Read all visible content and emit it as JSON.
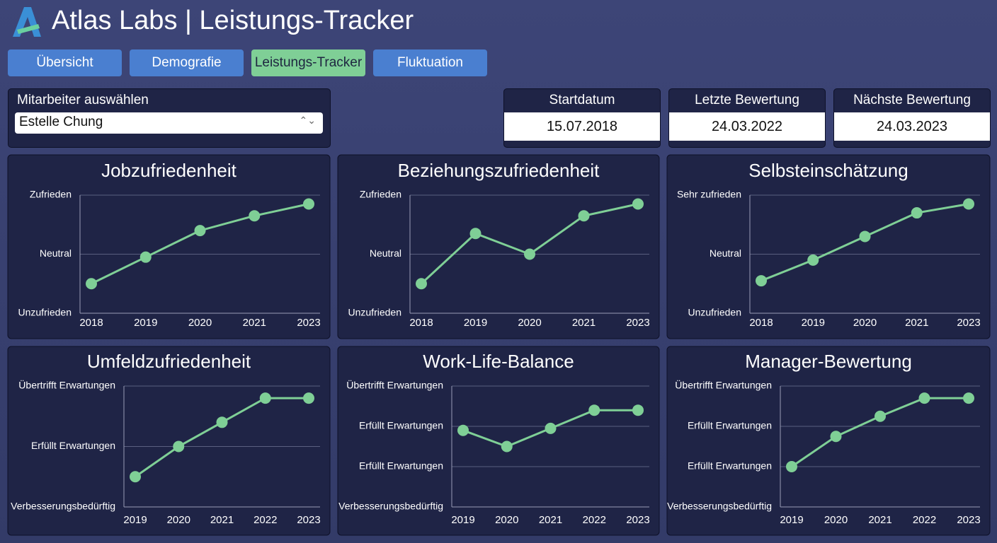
{
  "header": {
    "title": "Atlas Labs | Leistungs-Tracker"
  },
  "tabs": [
    "Übersicht",
    "Demografie",
    "Leistungs-Tracker",
    "Fluktuation"
  ],
  "active_tab": 2,
  "selector": {
    "label": "Mitarbeiter auswählen",
    "value": "Estelle Chung"
  },
  "dates": [
    {
      "label": "Startdatum",
      "value": "15.07.2018"
    },
    {
      "label": "Letzte Bewertung",
      "value": "24.03.2022"
    },
    {
      "label": "Nächste Bewertung",
      "value": "24.03.2023"
    }
  ],
  "chart_data": [
    {
      "type": "line",
      "title": "Jobzufriedenheit",
      "categories": [
        "2018",
        "2019",
        "2020",
        "2021",
        "2023"
      ],
      "series": [
        {
          "color": "#7fcf96",
          "values": [
            0.5,
            0.95,
            1.4,
            1.65,
            1.85
          ]
        }
      ],
      "ylim": [
        0,
        2
      ],
      "yticks": [
        {
          "value": 0,
          "label": "Unzufrieden"
        },
        {
          "value": 1,
          "label": "Neutral"
        },
        {
          "value": 2,
          "label": "Zufrieden"
        }
      ],
      "grid": true
    },
    {
      "type": "line",
      "title": "Beziehungszufriedenheit",
      "categories": [
        "2018",
        "2019",
        "2020",
        "2021",
        "2023"
      ],
      "series": [
        {
          "color": "#7fcf96",
          "values": [
            0.5,
            1.35,
            1.0,
            1.65,
            1.85
          ]
        }
      ],
      "ylim": [
        0,
        2
      ],
      "yticks": [
        {
          "value": 0,
          "label": "Unzufrieden"
        },
        {
          "value": 1,
          "label": "Neutral"
        },
        {
          "value": 2,
          "label": "Zufrieden"
        }
      ],
      "grid": true
    },
    {
      "type": "line",
      "title": "Selbsteinschätzung",
      "categories": [
        "2018",
        "2019",
        "2020",
        "2021",
        "2023"
      ],
      "series": [
        {
          "color": "#7fcf96",
          "values": [
            0.55,
            0.9,
            1.3,
            1.7,
            1.85
          ]
        }
      ],
      "ylim": [
        0,
        2
      ],
      "yticks": [
        {
          "value": 0,
          "label": "Unzufrieden"
        },
        {
          "value": 1,
          "label": "Neutral"
        },
        {
          "value": 2,
          "label": "Sehr zufrieden"
        }
      ],
      "grid": true
    },
    {
      "type": "line",
      "title": "Umfeldzufriedenheit",
      "categories": [
        "2019",
        "2020",
        "2021",
        "2022",
        "2023"
      ],
      "series": [
        {
          "color": "#7fcf96",
          "values": [
            0.5,
            1.0,
            1.4,
            1.8,
            1.8
          ]
        }
      ],
      "ylim": [
        0,
        2
      ],
      "yticks": [
        {
          "value": 0,
          "label": "Verbesserungsbedürftig"
        },
        {
          "value": 1,
          "label": "Erfüllt Erwartungen"
        },
        {
          "value": 2,
          "label": "Übertrifft Erwartungen"
        }
      ],
      "grid": true
    },
    {
      "type": "line",
      "title": "Work-Life-Balance",
      "categories": [
        "2019",
        "2020",
        "2021",
        "2022",
        "2023"
      ],
      "series": [
        {
          "color": "#7fcf96",
          "values": [
            1.9,
            1.5,
            1.95,
            2.4,
            2.4
          ]
        }
      ],
      "ylim": [
        0,
        3
      ],
      "yticks": [
        {
          "value": 0,
          "label": "Verbesserungsbedürftig"
        },
        {
          "value": 1,
          "label": "Erfüllt Erwartungen"
        },
        {
          "value": 2,
          "label": "Erfüllt Erwartungen"
        },
        {
          "value": 3,
          "label": "Übertrifft Erwartungen"
        }
      ],
      "grid": true
    },
    {
      "type": "line",
      "title": "Manager-Bewertung",
      "categories": [
        "2019",
        "2020",
        "2021",
        "2022",
        "2023"
      ],
      "series": [
        {
          "color": "#7fcf96",
          "values": [
            1.0,
            1.75,
            2.25,
            2.7,
            2.7
          ]
        }
      ],
      "ylim": [
        0,
        3
      ],
      "yticks": [
        {
          "value": 0,
          "label": "Verbesserungsbedürftig"
        },
        {
          "value": 1,
          "label": "Erfüllt Erwartungen"
        },
        {
          "value": 2,
          "label": "Erfüllt Erwartungen"
        },
        {
          "value": 3,
          "label": "Übertrifft Erwartungen"
        }
      ],
      "grid": true
    }
  ]
}
